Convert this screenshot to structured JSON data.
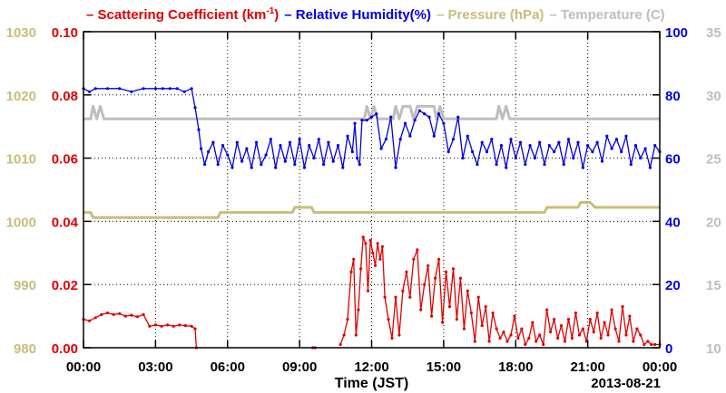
{
  "chart_data": {
    "type": "line",
    "legend": [
      {
        "text": "– Scattering Coefficient (km",
        "sup": "-1",
        "after": ")",
        "color": "#e00000"
      },
      {
        "text": "– Relative Humidity(%)",
        "color": "#0000e0"
      },
      {
        "text": "– Pressure (hPa)",
        "color": "#c8bd7a"
      },
      {
        "text": "– Temperature (C)",
        "color": "#bebebe"
      }
    ],
    "legend_placement": "top",
    "xlabel": "Time (JST)",
    "date_label": "2013-08-21",
    "x_range_hours": [
      0,
      24
    ],
    "x_ticks": [
      "00:00",
      "03:00",
      "06:00",
      "09:00",
      "12:00",
      "15:00",
      "18:00",
      "21:00",
      "00:00"
    ],
    "axes": {
      "scattering": {
        "side": "left-inner",
        "range": [
          0,
          0.1
        ],
        "ticks": [
          "0.00",
          "0.02",
          "0.04",
          "0.06",
          "0.08",
          "0.10"
        ],
        "color": "#e00000"
      },
      "pressure": {
        "side": "left-outer",
        "range": [
          980,
          1030
        ],
        "ticks": [
          "980",
          "990",
          "1000",
          "1010",
          "1020",
          "1030"
        ],
        "color": "#c8bd7a"
      },
      "humidity": {
        "side": "right-inner",
        "range": [
          0,
          100
        ],
        "ticks": [
          "0",
          "20",
          "40",
          "60",
          "80",
          "100"
        ],
        "color": "#0000e0"
      },
      "temperature": {
        "side": "right-outer",
        "range": [
          10,
          35
        ],
        "ticks": [
          "10",
          "15",
          "20",
          "25",
          "30",
          "35"
        ],
        "color": "#bebebe"
      }
    },
    "grid": "dotted",
    "series": [
      {
        "name": "Relative Humidity(%)",
        "axis": "humidity",
        "color": "#0000e0",
        "x": [
          0,
          0.25,
          0.5,
          1,
          1.5,
          2,
          2.5,
          3,
          3.3,
          3.6,
          3.9,
          4.2,
          4.5,
          4.65,
          4.8,
          4.9,
          5.05,
          5.2,
          5.4,
          5.6,
          5.8,
          6,
          6.2,
          6.4,
          6.6,
          6.8,
          7,
          7.2,
          7.4,
          7.6,
          7.8,
          8,
          8.2,
          8.4,
          8.6,
          8.8,
          9,
          9.2,
          9.4,
          9.6,
          9.8,
          10,
          10.2,
          10.4,
          10.6,
          10.8,
          11,
          11.2,
          11.3,
          11.4,
          11.5,
          11.6,
          11.8,
          12,
          12.2,
          12.4,
          12.6,
          12.8,
          13,
          13.2,
          13.4,
          13.6,
          13.8,
          14,
          14.2,
          14.4,
          14.6,
          14.8,
          15,
          15.2,
          15.4,
          15.6,
          15.8,
          16,
          16.2,
          16.4,
          16.6,
          16.8,
          17,
          17.2,
          17.4,
          17.6,
          17.8,
          18,
          18.2,
          18.4,
          18.6,
          18.8,
          19,
          19.2,
          19.4,
          19.6,
          19.8,
          20,
          20.2,
          20.4,
          20.6,
          20.8,
          21,
          21.2,
          21.4,
          21.6,
          21.8,
          22,
          22.2,
          22.4,
          22.6,
          22.8,
          23,
          23.2,
          23.4,
          23.6,
          23.8,
          24
        ],
        "y": [
          82,
          81,
          82,
          82,
          82,
          81,
          82,
          82,
          82,
          82,
          82,
          81,
          82,
          76,
          69,
          63,
          58,
          62,
          65,
          58,
          64,
          61,
          57,
          65,
          59,
          63,
          57,
          65,
          58,
          61,
          66,
          57,
          64,
          59,
          65,
          58,
          66,
          57,
          64,
          60,
          66,
          58,
          65,
          59,
          64,
          57,
          67,
          62,
          71,
          60,
          58,
          72,
          72,
          73,
          74,
          63,
          66,
          73,
          57,
          66,
          71,
          67,
          72,
          75,
          74,
          73,
          67,
          74,
          71,
          62,
          66,
          73,
          60,
          67,
          62,
          58,
          65,
          62,
          66,
          58,
          64,
          57,
          66,
          60,
          65,
          58,
          64,
          60,
          65,
          58,
          64,
          62,
          65,
          58,
          66,
          60,
          65,
          57,
          64,
          62,
          65,
          59,
          67,
          63,
          66,
          62,
          67,
          58,
          64,
          60,
          63,
          57,
          64,
          62
        ]
      },
      {
        "name": "Pressure (hPa)",
        "axis": "pressure",
        "color": "#c8bd7a",
        "x": [
          0,
          0.3,
          0.4,
          1,
          2,
          3,
          4,
          5,
          5.6,
          5.7,
          6,
          7,
          8,
          8.7,
          8.8,
          9.5,
          9.6,
          10,
          11,
          12,
          13,
          14,
          15,
          16,
          17,
          18,
          19,
          19.2,
          19.3,
          20,
          20.6,
          20.7,
          21.1,
          21.3,
          21.4,
          22,
          23,
          24
        ],
        "y": [
          1001.4,
          1001.4,
          1000.6,
          1000.6,
          1000.6,
          1000.6,
          1000.6,
          1000.6,
          1000.6,
          1001.4,
          1001.4,
          1001.4,
          1001.4,
          1001.4,
          1002.2,
          1002.2,
          1001.4,
          1001.4,
          1001.4,
          1001.4,
          1001.4,
          1001.4,
          1001.4,
          1001.4,
          1001.4,
          1001.4,
          1001.4,
          1001.4,
          1002.2,
          1002.2,
          1002.2,
          1003,
          1003,
          1002.2,
          1002.2,
          1002.2,
          1002.2,
          1002.2
        ]
      },
      {
        "name": "Temperature (C)",
        "axis": "temperature",
        "color": "#bebebe",
        "x": [
          0,
          0.3,
          0.4,
          0.55,
          0.7,
          0.85,
          1,
          2,
          3,
          4,
          5,
          6,
          7,
          8,
          9,
          10,
          11,
          11.7,
          11.8,
          11.95,
          12.1,
          12.25,
          12.4,
          12.9,
          13,
          13.15,
          13.3,
          13.5,
          13.6,
          13.75,
          13.9,
          14.6,
          14.7,
          14.85,
          15,
          15.5,
          16,
          16.5,
          17,
          17.2,
          17.3,
          17.45,
          17.6,
          17.75,
          17.9,
          18,
          19,
          20,
          21,
          22,
          23,
          24
        ],
        "y": [
          28.1,
          28.1,
          29.1,
          28.1,
          29.1,
          28.1,
          28.1,
          28.1,
          28.1,
          28.1,
          28.1,
          28.1,
          28.1,
          28.1,
          28.1,
          28.1,
          28.1,
          28.1,
          29.1,
          28.1,
          29.1,
          28.1,
          28.1,
          28.1,
          29.1,
          28.1,
          29.1,
          29.1,
          29.1,
          28.1,
          29.1,
          29.1,
          28.1,
          29.1,
          28.1,
          28.1,
          28.1,
          28.1,
          28.1,
          28.1,
          29.1,
          28.1,
          29.1,
          28.1,
          28.1,
          28.1,
          28.1,
          28.1,
          28.1,
          28.1,
          28.1,
          28.1
        ]
      },
      {
        "name": "Scattering Coefficient (km-1)",
        "axis": "scattering",
        "color": "#e00000",
        "segments": [
          {
            "x": [
              0,
              0.25,
              0.5,
              0.75,
              1,
              1.25,
              1.5,
              1.75,
              2,
              2.25,
              2.5,
              2.75,
              3,
              3.25,
              3.5,
              3.75,
              4,
              4.25,
              4.5,
              4.65,
              4.7
            ],
            "y": [
              0.009,
              0.0085,
              0.0095,
              0.0105,
              0.011,
              0.0105,
              0.0108,
              0.01,
              0.0103,
              0.0098,
              0.0105,
              0.0068,
              0.0072,
              0.0068,
              0.0072,
              0.0068,
              0.0072,
              0.007,
              0.0068,
              0.006,
              0.0
            ]
          },
          {
            "x": [
              9.55,
              9.65
            ],
            "y": [
              0.0,
              0.0
            ]
          },
          {
            "x": [
              10.7,
              10.85,
              11.0,
              11.15,
              11.25,
              11.35,
              11.45,
              11.55,
              11.65,
              11.75,
              11.85,
              11.95,
              12.05,
              12.15,
              12.25,
              12.35,
              12.45,
              12.55,
              12.7,
              12.85,
              13.0,
              13.15,
              13.3,
              13.45,
              13.6,
              13.75,
              13.9,
              14.05,
              14.2,
              14.35,
              14.5,
              14.65,
              14.8,
              14.95,
              15.1,
              15.25,
              15.4,
              15.55,
              15.7,
              15.85,
              16.0,
              16.15,
              16.3,
              16.45,
              16.6,
              16.75,
              16.9,
              17.05,
              17.2,
              17.35,
              17.5,
              17.65,
              17.8,
              17.95,
              18.1,
              18.25,
              18.4,
              18.55,
              18.7,
              18.85,
              19.0,
              19.15,
              19.3,
              19.45,
              19.6,
              19.75,
              19.9,
              20.05,
              20.2,
              20.35,
              20.5,
              20.65,
              20.8,
              20.95,
              21.1,
              21.25,
              21.4,
              21.55,
              21.7,
              21.85,
              22.0,
              22.15,
              22.3,
              22.45,
              22.6,
              22.75,
              22.9,
              23.05,
              23.2,
              23.35,
              23.5,
              23.65,
              23.8,
              24
            ],
            "y": [
              0.001,
              0.004,
              0.009,
              0.024,
              0.028,
              0.004,
              0.012,
              0.025,
              0.035,
              0.033,
              0.018,
              0.034,
              0.03,
              0.026,
              0.033,
              0.028,
              0.032,
              0.016,
              0.009,
              0.003,
              0.016,
              0.004,
              0.018,
              0.024,
              0.016,
              0.028,
              0.031,
              0.012,
              0.02,
              0.026,
              0.01,
              0.022,
              0.028,
              0.008,
              0.024,
              0.013,
              0.025,
              0.009,
              0.022,
              0.006,
              0.018,
              0.011,
              0.002,
              0.016,
              0.007,
              0.013,
              0.002,
              0.011,
              0.006,
              0.003,
              0.005,
              0.002,
              0.004,
              0.01,
              0.003,
              0.006,
              0.001,
              0.003,
              0.008,
              0.002,
              0.004,
              0.001,
              0.012,
              0.005,
              0.009,
              0.003,
              0.007,
              0.002,
              0.009,
              0.003,
              0.011,
              0.004,
              0.006,
              0.002,
              0.009,
              0.005,
              0.011,
              0.003,
              0.008,
              0.004,
              0.012,
              0.006,
              0.002,
              0.013,
              0.004,
              0.01,
              0.002,
              0.006,
              0.004,
              0.001,
              0.002,
              0.001,
              0.001,
              0.001
            ]
          }
        ]
      }
    ]
  }
}
